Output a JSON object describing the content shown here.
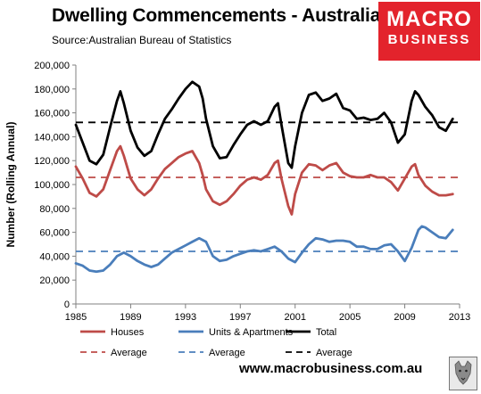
{
  "header": {
    "title": "Dwelling Commencements - Australia",
    "source": "Source:Australian Bureau of Statistics"
  },
  "logo": {
    "line1": "MACRO",
    "line2": "BUSINESS",
    "color": "#e3232c"
  },
  "footer": {
    "site": "www.macrobusiness.com.au"
  },
  "chart_data": {
    "type": "line",
    "title": "Dwelling Commencements - Australia",
    "ylabel": "Number (Rolling Annual)",
    "xlim": [
      1985,
      2013
    ],
    "ylim": [
      0,
      200000
    ],
    "x_ticks": [
      1985,
      1989,
      1993,
      1997,
      2001,
      2005,
      2009,
      2013
    ],
    "y_ticks": [
      0,
      20000,
      40000,
      60000,
      80000,
      100000,
      120000,
      140000,
      160000,
      180000,
      200000
    ],
    "y_tick_labels": [
      "0",
      "20,000",
      "40,000",
      "60,000",
      "80,000",
      "100,000",
      "120,000",
      "140,000",
      "160,000",
      "180,000",
      "200,000"
    ],
    "x_tick_labels": [
      "1985",
      "1989",
      "1993",
      "1997",
      "2001",
      "2005",
      "2009",
      "2013"
    ],
    "grid": false,
    "legend_position": "bottom",
    "series": [
      {
        "name": "Houses",
        "color": "#be4b48",
        "style": "solid",
        "x": [
          1985.0,
          1985.5,
          1986.0,
          1986.5,
          1987.0,
          1987.5,
          1988.0,
          1988.25,
          1988.5,
          1989.0,
          1989.5,
          1990.0,
          1990.5,
          1991.0,
          1991.5,
          1992.0,
          1992.5,
          1993.0,
          1993.5,
          1994.0,
          1994.25,
          1994.5,
          1995.0,
          1995.5,
          1996.0,
          1996.5,
          1997.0,
          1997.5,
          1998.0,
          1998.5,
          1999.0,
          1999.5,
          1999.75,
          2000.0,
          2000.5,
          2000.75,
          2001.0,
          2001.5,
          2002.0,
          2002.5,
          2003.0,
          2003.5,
          2004.0,
          2004.5,
          2005.0,
          2005.5,
          2006.0,
          2006.5,
          2007.0,
          2007.5,
          2008.0,
          2008.5,
          2009.0,
          2009.5,
          2009.75,
          2010.0,
          2010.5,
          2011.0,
          2011.5,
          2012.0,
          2012.5
        ],
        "y": [
          115000,
          105000,
          93000,
          90000,
          96000,
          112000,
          128000,
          132000,
          124000,
          105000,
          96000,
          91000,
          96000,
          105000,
          113000,
          118000,
          123000,
          126000,
          128000,
          118000,
          108000,
          96000,
          86000,
          83000,
          86000,
          92000,
          99000,
          104000,
          106000,
          104000,
          108000,
          118000,
          120000,
          105000,
          82000,
          75000,
          92000,
          110000,
          117000,
          116000,
          112000,
          116000,
          118000,
          110000,
          107000,
          106000,
          106000,
          108000,
          106000,
          106000,
          102000,
          95000,
          105000,
          115000,
          117000,
          108000,
          99000,
          94000,
          91000,
          91000,
          92000
        ]
      },
      {
        "name": "Units & Apartments",
        "color": "#4a7ebb",
        "style": "solid",
        "x": [
          1985.0,
          1985.5,
          1986.0,
          1986.5,
          1987.0,
          1987.5,
          1988.0,
          1988.5,
          1989.0,
          1989.5,
          1990.0,
          1990.5,
          1991.0,
          1991.5,
          1992.0,
          1992.5,
          1993.0,
          1993.5,
          1994.0,
          1994.5,
          1995.0,
          1995.5,
          1996.0,
          1996.5,
          1997.0,
          1997.5,
          1998.0,
          1998.5,
          1999.0,
          1999.5,
          2000.0,
          2000.5,
          2001.0,
          2001.5,
          2002.0,
          2002.5,
          2003.0,
          2003.5,
          2004.0,
          2004.5,
          2005.0,
          2005.5,
          2006.0,
          2006.5,
          2007.0,
          2007.5,
          2008.0,
          2008.5,
          2009.0,
          2009.5,
          2010.0,
          2010.25,
          2010.5,
          2011.0,
          2011.5,
          2012.0,
          2012.5
        ],
        "y": [
          34000,
          32000,
          28000,
          27000,
          28000,
          33000,
          40000,
          43000,
          40000,
          36000,
          33000,
          31000,
          33000,
          38000,
          43000,
          46000,
          49000,
          52000,
          55000,
          52000,
          40000,
          36000,
          37000,
          40000,
          42000,
          44000,
          45000,
          44000,
          46000,
          48000,
          44000,
          38000,
          35000,
          43000,
          50000,
          55000,
          54000,
          52000,
          53000,
          53000,
          52000,
          48000,
          48000,
          46000,
          46000,
          49000,
          50000,
          44000,
          36000,
          47000,
          62000,
          65000,
          64000,
          60000,
          56000,
          55000,
          62000
        ]
      },
      {
        "name": "Total",
        "color": "#000000",
        "style": "solid",
        "x": [
          1985.0,
          1985.5,
          1986.0,
          1986.5,
          1987.0,
          1987.5,
          1988.0,
          1988.25,
          1988.5,
          1989.0,
          1989.5,
          1990.0,
          1990.5,
          1991.0,
          1991.5,
          1992.0,
          1992.5,
          1993.0,
          1993.5,
          1994.0,
          1994.25,
          1994.5,
          1995.0,
          1995.5,
          1996.0,
          1996.5,
          1997.0,
          1997.5,
          1998.0,
          1998.5,
          1999.0,
          1999.5,
          1999.75,
          2000.0,
          2000.5,
          2000.75,
          2001.0,
          2001.5,
          2002.0,
          2002.5,
          2003.0,
          2003.5,
          2004.0,
          2004.5,
          2005.0,
          2005.5,
          2006.0,
          2006.5,
          2007.0,
          2007.5,
          2008.0,
          2008.5,
          2009.0,
          2009.5,
          2009.75,
          2010.0,
          2010.5,
          2011.0,
          2011.5,
          2012.0,
          2012.5
        ],
        "y": [
          150000,
          135000,
          120000,
          117000,
          125000,
          148000,
          170000,
          178000,
          168000,
          145000,
          131000,
          124000,
          128000,
          142000,
          155000,
          163000,
          172000,
          180000,
          186000,
          182000,
          172000,
          155000,
          132000,
          122000,
          123000,
          133000,
          142000,
          150000,
          153000,
          150000,
          153000,
          165000,
          168000,
          150000,
          118000,
          114000,
          132000,
          160000,
          175000,
          177000,
          170000,
          172000,
          176000,
          164000,
          162000,
          155000,
          156000,
          154000,
          155000,
          160000,
          152000,
          135000,
          142000,
          170000,
          178000,
          175000,
          165000,
          158000,
          148000,
          145000,
          155000
        ]
      },
      {
        "name": "Average",
        "color": "#be4b48",
        "style": "dashed",
        "x": [
          1985,
          2013
        ],
        "y": [
          106000,
          106000
        ]
      },
      {
        "name": "Average",
        "color": "#4a7ebb",
        "style": "dashed",
        "x": [
          1985,
          2013
        ],
        "y": [
          44000,
          44000
        ]
      },
      {
        "name": "Average",
        "color": "#000000",
        "style": "dashed",
        "x": [
          1985,
          2013
        ],
        "y": [
          152000,
          152000
        ]
      }
    ]
  }
}
